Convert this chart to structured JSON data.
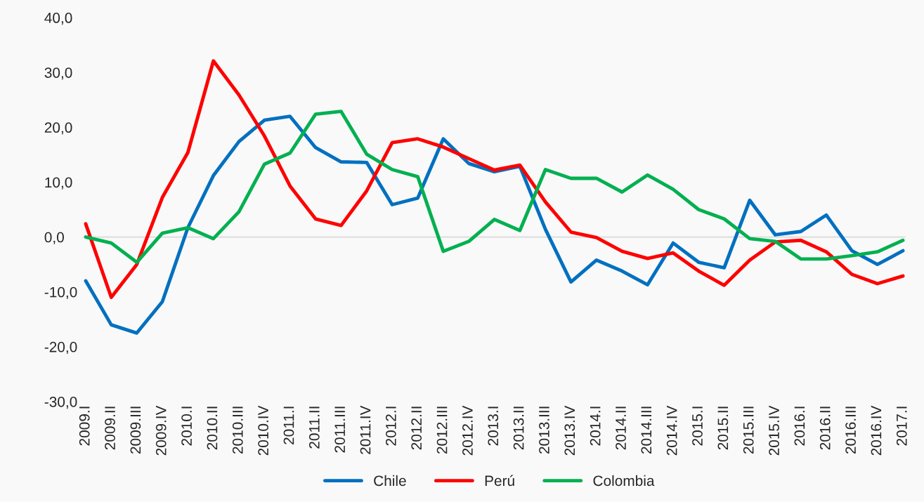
{
  "chart_data": {
    "type": "line",
    "categories": [
      "2009.I",
      "2009.II",
      "2009.III",
      "2009.IV",
      "2010.I",
      "2010.II",
      "2010.III",
      "2010.IV",
      "2011.I",
      "2011.II",
      "2011.III",
      "2011.IV",
      "2012.I",
      "2012.II",
      "2012.III",
      "2012.IV",
      "2013.I",
      "2013.II",
      "2013.III",
      "2013.IV",
      "2014.I",
      "2014.II",
      "2014.III",
      "2014.IV",
      "2015.I",
      "2015.II",
      "2015.III",
      "2015.IV",
      "2016.I",
      "2016.II",
      "2016.III",
      "2016.IV",
      "2017.I"
    ],
    "series": [
      {
        "name": "Chile",
        "color": "#0070c0",
        "values": [
          -8.0,
          -16.0,
          -17.5,
          -11.8,
          1.7,
          11.2,
          17.4,
          21.3,
          22.0,
          16.3,
          13.7,
          13.6,
          5.9,
          7.1,
          17.9,
          13.4,
          11.9,
          12.9,
          1.4,
          -8.2,
          -4.2,
          -6.2,
          -8.7,
          -1.1,
          -4.6,
          -5.6,
          6.7,
          0.4,
          1.0,
          4.0,
          -2.5,
          -5.0,
          -2.5
        ]
      },
      {
        "name": "Perú",
        "color": "#ff0000",
        "values": [
          2.4,
          -11.0,
          -5.0,
          7.2,
          15.4,
          32.1,
          25.9,
          18.4,
          9.3,
          3.3,
          2.1,
          8.4,
          17.2,
          17.9,
          16.4,
          14.3,
          12.2,
          13.1,
          6.4,
          0.9,
          -0.1,
          -2.6,
          -3.9,
          -2.9,
          -6.2,
          -8.8,
          -4.2,
          -0.9,
          -0.6,
          -2.7,
          -6.8,
          -8.5,
          -7.1
        ]
      },
      {
        "name": "Colombia",
        "color": "#00b050",
        "values": [
          0.0,
          -1.1,
          -4.6,
          0.7,
          1.7,
          -0.3,
          4.6,
          13.3,
          15.3,
          22.4,
          22.9,
          15.1,
          12.3,
          11.0,
          -2.6,
          -0.8,
          3.2,
          1.2,
          12.3,
          10.7,
          10.7,
          8.2,
          11.3,
          8.7,
          5.0,
          3.3,
          -0.3,
          -0.8,
          -4.0,
          -4.0,
          -3.4,
          -2.7,
          -0.6
        ]
      }
    ],
    "ylim": [
      -30,
      40
    ],
    "yticks": [
      {
        "value": -30,
        "label": "-30,0"
      },
      {
        "value": -20,
        "label": "-20,0"
      },
      {
        "value": -10,
        "label": "-10,0"
      },
      {
        "value": 0,
        "label": "0,0"
      },
      {
        "value": 10,
        "label": "10,0"
      },
      {
        "value": 20,
        "label": "20,0"
      },
      {
        "value": 30,
        "label": "30,0"
      },
      {
        "value": 40,
        "label": "40,0"
      }
    ],
    "ref_lines": [
      {
        "axis": "y",
        "value": 0,
        "color": "#d9d9d9"
      }
    ],
    "legend": "bottom",
    "grid": false,
    "marker": "none",
    "line_style": "solid"
  }
}
